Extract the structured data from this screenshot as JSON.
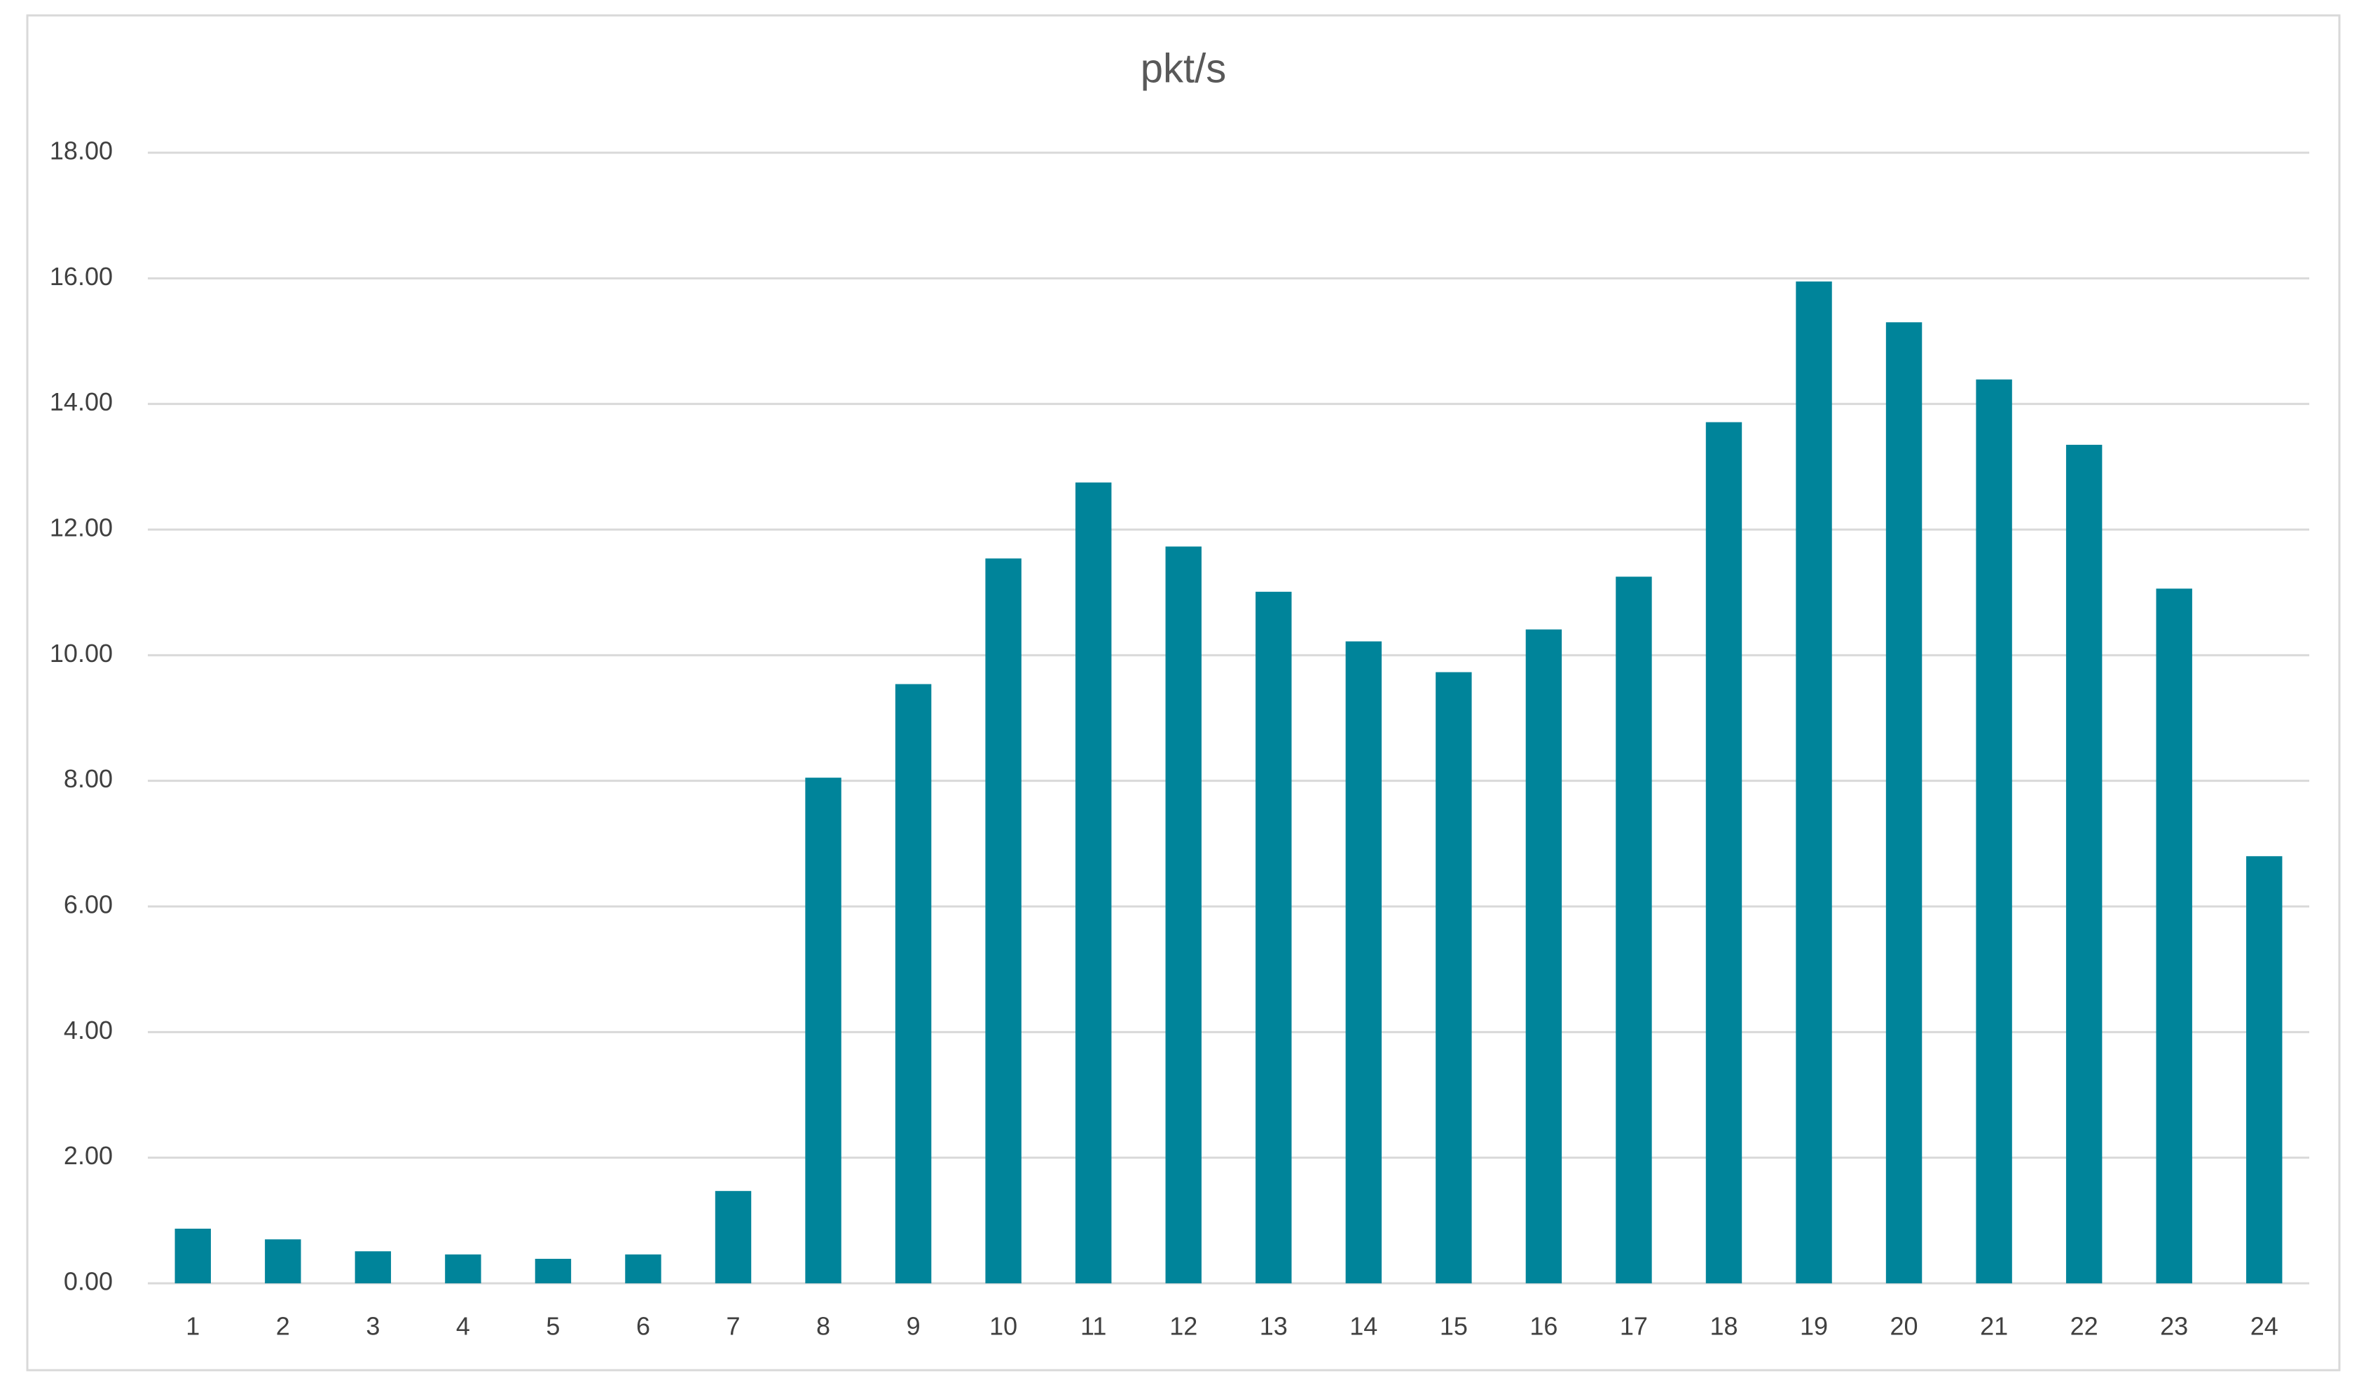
{
  "chart_data": {
    "type": "bar",
    "title": "pkt/s",
    "categories": [
      "1",
      "2",
      "3",
      "4",
      "5",
      "6",
      "7",
      "8",
      "9",
      "10",
      "11",
      "12",
      "13",
      "14",
      "15",
      "16",
      "17",
      "18",
      "19",
      "20",
      "21",
      "22",
      "23",
      "24"
    ],
    "values": [
      0.87,
      0.7,
      0.51,
      0.46,
      0.39,
      0.46,
      1.47,
      8.05,
      9.54,
      11.54,
      12.75,
      11.73,
      11.01,
      10.22,
      9.73,
      10.41,
      11.25,
      13.71,
      15.95,
      15.3,
      14.39,
      13.35,
      11.06,
      6.8
    ],
    "color": "#00849a",
    "ylim": [
      0,
      18
    ],
    "yticks": [
      {
        "value": 0,
        "label": "0.00"
      },
      {
        "value": 2,
        "label": "2.00"
      },
      {
        "value": 4,
        "label": "4.00"
      },
      {
        "value": 6,
        "label": "6.00"
      },
      {
        "value": 8,
        "label": "8.00"
      },
      {
        "value": 10,
        "label": "10.00"
      },
      {
        "value": 12,
        "label": "12.00"
      },
      {
        "value": 14,
        "label": "14.00"
      },
      {
        "value": 16,
        "label": "16.00"
      },
      {
        "value": 18,
        "label": "18.00"
      }
    ],
    "grid": true
  }
}
